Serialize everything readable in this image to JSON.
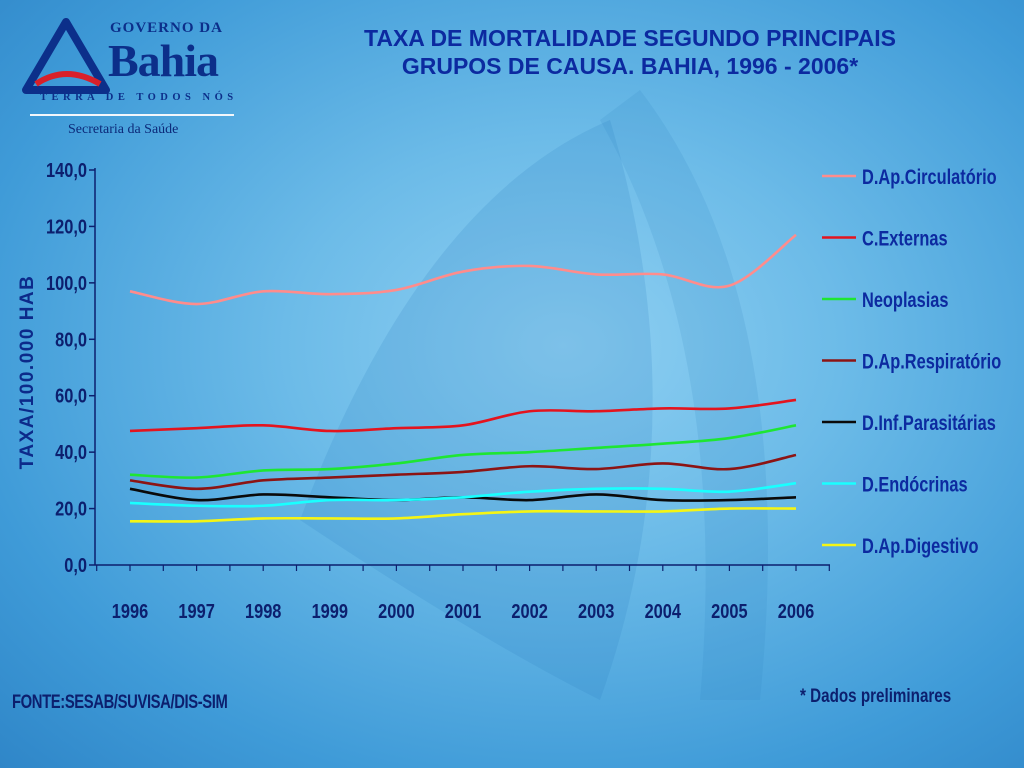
{
  "logo": {
    "top": "GOVERNO DA",
    "main": "Bahia",
    "sub": "TERRA DE TODOS NÓS",
    "secretaria": "Secretaria da Saúde"
  },
  "footer": {
    "source": "FONTE:SESAB/SUVISA/DIS-SIM",
    "note": "* Dados preliminares"
  },
  "chart_data": {
    "type": "line",
    "title": "TAXA DE MORTALIDADE SEGUNDO PRINCIPAIS GRUPOS DE CAUSA. BAHIA, 1996 - 2006*",
    "title_lines": [
      "TAXA DE MORTALIDADE SEGUNDO PRINCIPAIS",
      "GRUPOS DE CAUSA. BAHIA, 1996 - 2006*"
    ],
    "ylabel": "TAXA/100.000 HAB",
    "xlabel": "",
    "categories": [
      "1996",
      "1997",
      "1998",
      "1999",
      "2000",
      "2001",
      "2002",
      "2003",
      "2004",
      "2005",
      "2006"
    ],
    "y_ticks": [
      "0,0",
      "20,0",
      "40,0",
      "60,0",
      "80,0",
      "100,0",
      "120,0",
      "140,0"
    ],
    "ylim": [
      0,
      140
    ],
    "legend_position": "right",
    "grid": false,
    "series": [
      {
        "name": "D.Ap.Circulatório",
        "color": "#ff8c8c",
        "values": [
          97,
          92.5,
          97,
          96,
          97.5,
          104,
          106,
          103,
          103,
          99,
          117
        ]
      },
      {
        "name": "C.Externas",
        "color": "#e4141e",
        "values": [
          47.5,
          48.5,
          49.5,
          47.5,
          48.5,
          49.5,
          54.5,
          54.5,
          55.5,
          55.5,
          58.5
        ]
      },
      {
        "name": "Neoplasias",
        "color": "#1ee632",
        "values": [
          32,
          31,
          33.5,
          34,
          36,
          39,
          40,
          41.5,
          43,
          45,
          49.5
        ]
      },
      {
        "name": "D.Ap.Respiratório",
        "color": "#8c1414",
        "values": [
          30,
          27,
          30,
          31,
          32,
          33,
          35,
          34,
          36,
          34,
          39
        ]
      },
      {
        "name": "D.Inf.Parasitárias",
        "color": "#0a0a0a",
        "values": [
          27,
          23,
          25,
          24,
          23,
          24,
          23,
          25,
          23,
          23,
          24
        ]
      },
      {
        "name": "D.Endócrinas",
        "color": "#19ffff",
        "values": [
          22,
          21,
          21,
          23,
          23,
          24,
          26,
          27,
          27,
          26,
          29
        ]
      },
      {
        "name": "D.Ap.Digestivo",
        "color": "#f5f514",
        "values": [
          15.5,
          15.5,
          16.5,
          16.5,
          16.5,
          18,
          19,
          19,
          19,
          20,
          20
        ]
      }
    ]
  }
}
